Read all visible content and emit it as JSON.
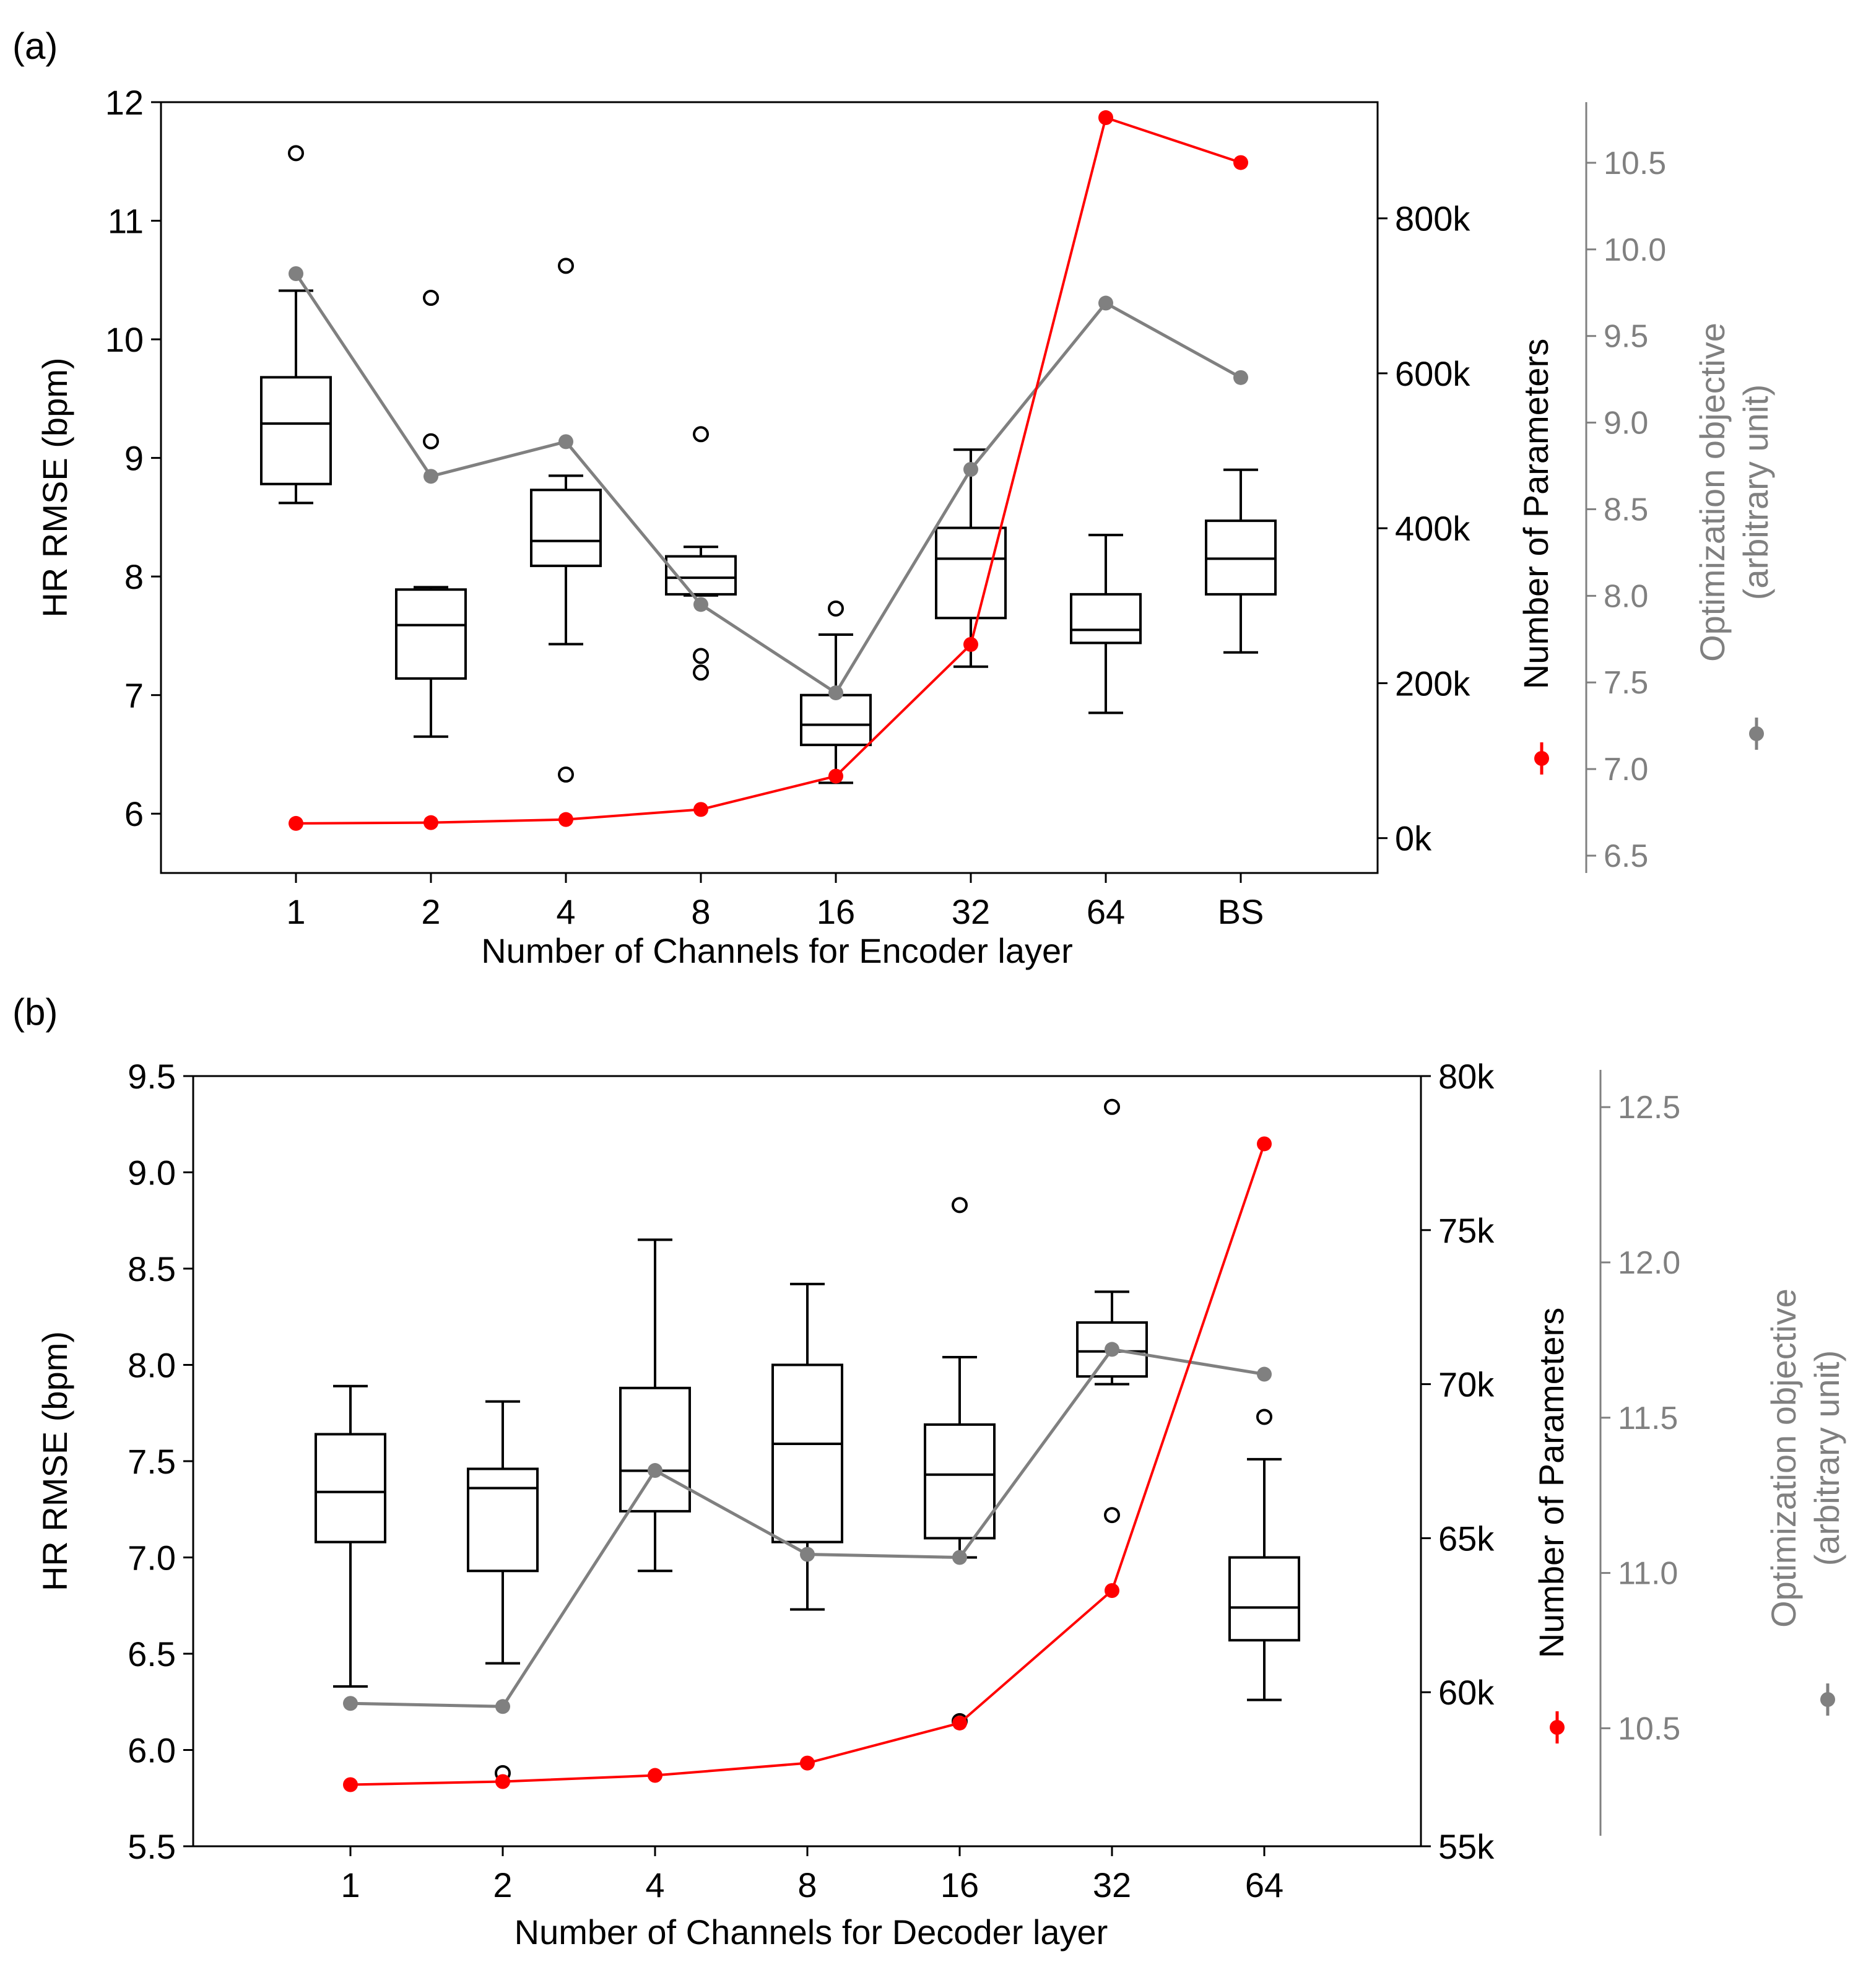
{
  "panels": [
    {
      "label": "(a)",
      "chart_data": {
        "type": "box",
        "title": "",
        "xlabel": "Number of Channels for Encoder layer",
        "ylabel": "HR RMSE (bpm)",
        "ylim": [
          5.5,
          12
        ],
        "yticks": [
          "6",
          "7",
          "8",
          "9",
          "10",
          "11",
          "12"
        ],
        "categories": [
          "1",
          "2",
          "4",
          "8",
          "16",
          "32",
          "64",
          "BS"
        ],
        "boxes": [
          {
            "category": "1",
            "whislo": 8.62,
            "q1": 8.78,
            "med": 9.29,
            "q3": 9.68,
            "whishi": 10.41,
            "fliers": [
              11.57
            ]
          },
          {
            "category": "2",
            "whislo": 6.65,
            "q1": 7.14,
            "med": 7.59,
            "q3": 7.89,
            "whishi": 7.91,
            "fliers": [
              9.14,
              10.35
            ]
          },
          {
            "category": "4",
            "whislo": 7.43,
            "q1": 8.09,
            "med": 8.3,
            "q3": 8.73,
            "whishi": 8.85,
            "fliers": [
              6.33,
              10.62
            ]
          },
          {
            "category": "8",
            "whislo": 7.84,
            "q1": 7.85,
            "med": 7.99,
            "q3": 8.17,
            "whishi": 8.25,
            "fliers": [
              7.19,
              7.33,
              9.2
            ]
          },
          {
            "category": "16",
            "whislo": 6.26,
            "q1": 6.58,
            "med": 6.75,
            "q3": 7.0,
            "whishi": 7.51,
            "fliers": [
              7.73
            ]
          },
          {
            "category": "32",
            "whislo": 7.24,
            "q1": 7.65,
            "med": 8.15,
            "q3": 8.41,
            "whishi": 9.07,
            "fliers": []
          },
          {
            "category": "64",
            "whislo": 6.85,
            "q1": 7.44,
            "med": 7.55,
            "q3": 7.85,
            "whishi": 8.35,
            "fliers": []
          },
          {
            "category": "BS",
            "whislo": 7.36,
            "q1": 7.85,
            "med": 8.15,
            "q3": 8.47,
            "whishi": 8.9,
            "fliers": []
          }
        ],
        "params_axis": {
          "label": "Number of Parameters",
          "color": "#ff0000",
          "ylim": [
            -45000,
            950000
          ],
          "ticks": [
            0,
            200000,
            400000,
            600000,
            800000
          ],
          "tick_labels": [
            "0k",
            "200k",
            "400k",
            "600k",
            "800k"
          ],
          "values": [
            19000,
            20000,
            24000,
            37000,
            80000,
            250000,
            930000,
            872000
          ]
        },
        "objective_axis": {
          "label": "Optimization objective\n(arbitrary unit)",
          "color": "#808080",
          "ylim": [
            6.4,
            10.85
          ],
          "ticks": [
            6.5,
            7.0,
            7.5,
            8.0,
            8.5,
            9.0,
            9.5,
            10.0,
            10.5
          ],
          "tick_labels": [
            "6.5",
            "7.0",
            "7.5",
            "8.0",
            "8.5",
            "9.0",
            "9.5",
            "10.0",
            "10.5"
          ],
          "values": [
            9.86,
            8.69,
            8.89,
            7.95,
            7.44,
            8.73,
            9.69,
            9.26
          ]
        }
      }
    },
    {
      "label": "(b)",
      "chart_data": {
        "type": "box",
        "title": "",
        "xlabel": "Number of Channels for Decoder layer",
        "ylabel": "HR RMSE (bpm)",
        "ylim": [
          5.5,
          9.5
        ],
        "yticks": [
          "5.5",
          "6.0",
          "6.5",
          "7.0",
          "7.5",
          "8.0",
          "8.5",
          "9.0",
          "9.5"
        ],
        "categories": [
          "1",
          "2",
          "4",
          "8",
          "16",
          "32",
          "64"
        ],
        "boxes": [
          {
            "category": "1",
            "whislo": 6.33,
            "q1": 7.08,
            "med": 7.34,
            "q3": 7.64,
            "whishi": 7.89,
            "fliers": []
          },
          {
            "category": "2",
            "whislo": 6.45,
            "q1": 6.93,
            "med": 7.36,
            "q3": 7.46,
            "whishi": 7.81,
            "fliers": [
              5.88
            ]
          },
          {
            "category": "4",
            "whislo": 6.93,
            "q1": 7.24,
            "med": 7.45,
            "q3": 7.88,
            "whishi": 8.65,
            "fliers": []
          },
          {
            "category": "8",
            "whislo": 6.73,
            "q1": 7.08,
            "med": 7.59,
            "q3": 8.0,
            "whishi": 8.42,
            "fliers": []
          },
          {
            "category": "16",
            "whislo": 7.0,
            "q1": 7.1,
            "med": 7.43,
            "q3": 7.69,
            "whishi": 8.04,
            "fliers": [
              6.15,
              8.83
            ]
          },
          {
            "category": "32",
            "whislo": 7.9,
            "q1": 7.94,
            "med": 8.07,
            "q3": 8.22,
            "whishi": 8.38,
            "fliers": [
              7.22,
              9.34
            ]
          },
          {
            "category": "64",
            "whislo": 6.26,
            "q1": 6.57,
            "med": 6.74,
            "q3": 7.0,
            "whishi": 7.51,
            "fliers": [
              7.73
            ]
          }
        ],
        "params_axis": {
          "label": "Number of Parameters",
          "color": "#ff0000",
          "ylim": [
            55000,
            80000
          ],
          "ticks": [
            55000,
            60000,
            65000,
            70000,
            75000,
            80000
          ],
          "tick_labels": [
            "55k",
            "60k",
            "65k",
            "70k",
            "75k",
            "80k"
          ],
          "values": [
            57000,
            57100,
            57300,
            57700,
            59000,
            63300,
            77800
          ]
        },
        "objective_axis": {
          "label": "Optimization objective\n(arbitrary unit)",
          "color": "#808080",
          "ylim": [
            10.12,
            12.6
          ],
          "ticks": [
            10.5,
            11.0,
            11.5,
            12.0,
            12.5
          ],
          "tick_labels": [
            "10.5",
            "11.0",
            "11.5",
            "12.0",
            "12.5"
          ],
          "values": [
            10.58,
            10.57,
            11.33,
            11.06,
            11.05,
            11.72,
            11.64
          ]
        }
      }
    }
  ]
}
